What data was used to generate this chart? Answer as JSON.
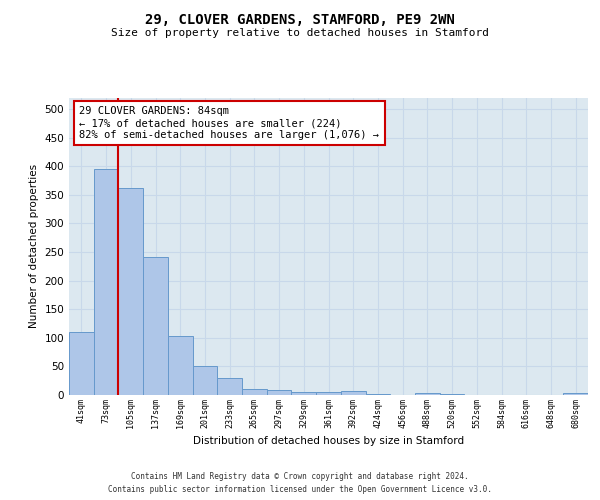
{
  "title": "29, CLOVER GARDENS, STAMFORD, PE9 2WN",
  "subtitle": "Size of property relative to detached houses in Stamford",
  "xlabel": "Distribution of detached houses by size in Stamford",
  "ylabel": "Number of detached properties",
  "bar_labels": [
    "41sqm",
    "73sqm",
    "105sqm",
    "137sqm",
    "169sqm",
    "201sqm",
    "233sqm",
    "265sqm",
    "297sqm",
    "329sqm",
    "361sqm",
    "392sqm",
    "424sqm",
    "456sqm",
    "488sqm",
    "520sqm",
    "552sqm",
    "584sqm",
    "616sqm",
    "648sqm",
    "680sqm"
  ],
  "bar_values": [
    110,
    395,
    362,
    242,
    103,
    50,
    29,
    10,
    8,
    5,
    5,
    7,
    1,
    0,
    4,
    1,
    0,
    0,
    0,
    0,
    4
  ],
  "bar_color": "#aec6e8",
  "bar_edge_color": "#6699cc",
  "grid_color": "#c8d8ea",
  "background_color": "#dce8f0",
  "annotation_text": "29 CLOVER GARDENS: 84sqm\n← 17% of detached houses are smaller (224)\n82% of semi-detached houses are larger (1,076) →",
  "annotation_box_color": "#cc0000",
  "property_line_x": 1.5,
  "ylim": [
    0,
    520
  ],
  "yticks": [
    0,
    50,
    100,
    150,
    200,
    250,
    300,
    350,
    400,
    450,
    500
  ],
  "footer_line1": "Contains HM Land Registry data © Crown copyright and database right 2024.",
  "footer_line2": "Contains public sector information licensed under the Open Government Licence v3.0."
}
